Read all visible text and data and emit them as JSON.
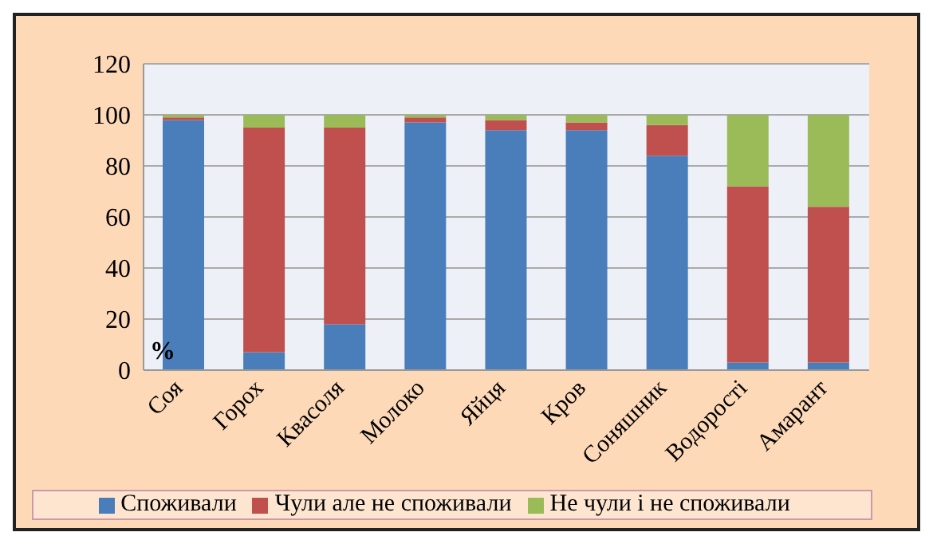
{
  "chart_data": {
    "type": "bar",
    "stacked": true,
    "ylabel": "%",
    "categories": [
      "Соя",
      "Горох",
      "Квасоля",
      "Молоко",
      "Яйця",
      "Кров",
      "Соняшник",
      "Водорості",
      "Амарант"
    ],
    "series": [
      {
        "name": "Споживали",
        "color": "#4a7ebb",
        "values": [
          98,
          7,
          18,
          97,
          94,
          94,
          84,
          3,
          3
        ]
      },
      {
        "name": "Чули але не споживали",
        "color": "#c0504d",
        "values": [
          1,
          88,
          77,
          2,
          4,
          3,
          12,
          69,
          61
        ]
      },
      {
        "name": "Не чули і не споживали",
        "color": "#9bbb59",
        "values": [
          1,
          5,
          5,
          1,
          2,
          3,
          4,
          28,
          36
        ]
      }
    ],
    "ylim": [
      0,
      120
    ],
    "yticks": [
      0,
      20,
      40,
      60,
      80,
      100,
      120
    ],
    "grid": "y",
    "legend": "bottom"
  }
}
